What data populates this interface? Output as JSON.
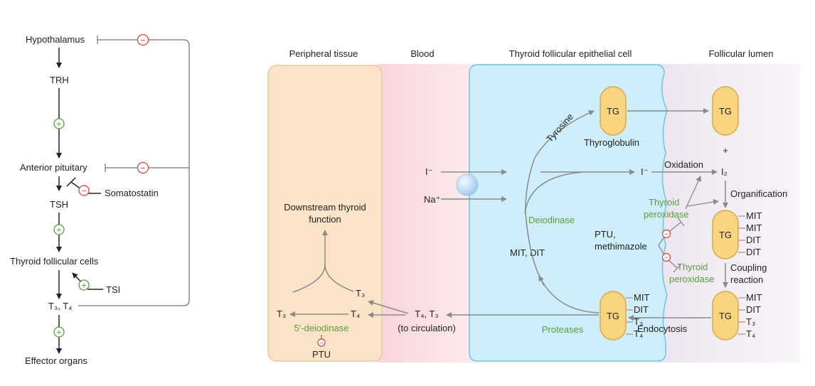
{
  "axis_labels": {
    "hypothalamus": "Hypothalamus",
    "trh": "TRH",
    "anterior_pituitary": "Anterior pituitary",
    "somatostatin": "Somatostatin",
    "tsh": "TSH",
    "thyroid_follicular_cells": "Thyroid follicular cells",
    "tsi": "TSI",
    "t3_t4": "T₃, T₄",
    "effector_organs": "Effector organs"
  },
  "signs": {
    "plus": "+",
    "minus": "−"
  },
  "region_headers": {
    "peripheral": "Peripheral tissue",
    "blood": "Blood",
    "thyroid_cell": "Thyroid follicular epithelial cell",
    "lumen": "Follicular lumen"
  },
  "peripheral": {
    "downstream_line1": "Downstream thyroid",
    "downstream_line2": "function",
    "t3_upper": "T₃",
    "t3_left": "T₃",
    "t4": "T₄",
    "deiodinase": "5′-deiodinase",
    "ptu": "PTU"
  },
  "blood": {
    "t4_t3": "T₄, T₃",
    "to_circulation": "(to circulation)"
  },
  "cell": {
    "iodide": "I⁻",
    "sodium": "Na⁺",
    "tyrosine": "Tyrosine",
    "tg": "TG",
    "thyroglobulin": "Thyroglobulin",
    "iodide_inner": "I⁻",
    "deiodinase": "Deiodinase",
    "mit_dit": "MIT, DIT",
    "ptu_line1": "PTU,",
    "ptu_line2": "methimazole",
    "proteases": "Proteases",
    "labels_bottom": [
      "MIT",
      "DIT",
      "T₃",
      "T₄"
    ]
  },
  "lumen": {
    "tg_top": "TG",
    "plus": "+",
    "oxidation": "Oxidation",
    "i2": "I₂",
    "peroxidase1_line1": "Thyroid",
    "peroxidase1_line2": "peroxidase",
    "organification": "Organification",
    "tg_mid": "TG",
    "mid_labels": [
      "MIT",
      "MIT",
      "DIT",
      "DIT"
    ],
    "peroxidase2_line1": "Thyroid",
    "peroxidase2_line2": "peroxidase",
    "coupling_line1": "Coupling",
    "coupling_line2": "reaction",
    "tg_bottom": "TG",
    "bottom_labels": [
      "MIT",
      "DIT",
      "T₃",
      "T₄"
    ],
    "endocytosis": "Endocytosis"
  },
  "colors": {
    "peripheral_fill": "#fbe3c7",
    "peripheral_stroke": "#e6c8a0",
    "blood_fill": "#f9cfd6",
    "cell_fill": "#cdeefa",
    "cell_stroke": "#6cc4ea",
    "lumen_fill": "#ece4ef",
    "tg_fill": "#f8d57e",
    "tg_stroke": "#d9a94a",
    "plus_green": "#5a9e3a",
    "minus_red": "#d9453f",
    "arrow_gray": "#8a8a8a"
  }
}
